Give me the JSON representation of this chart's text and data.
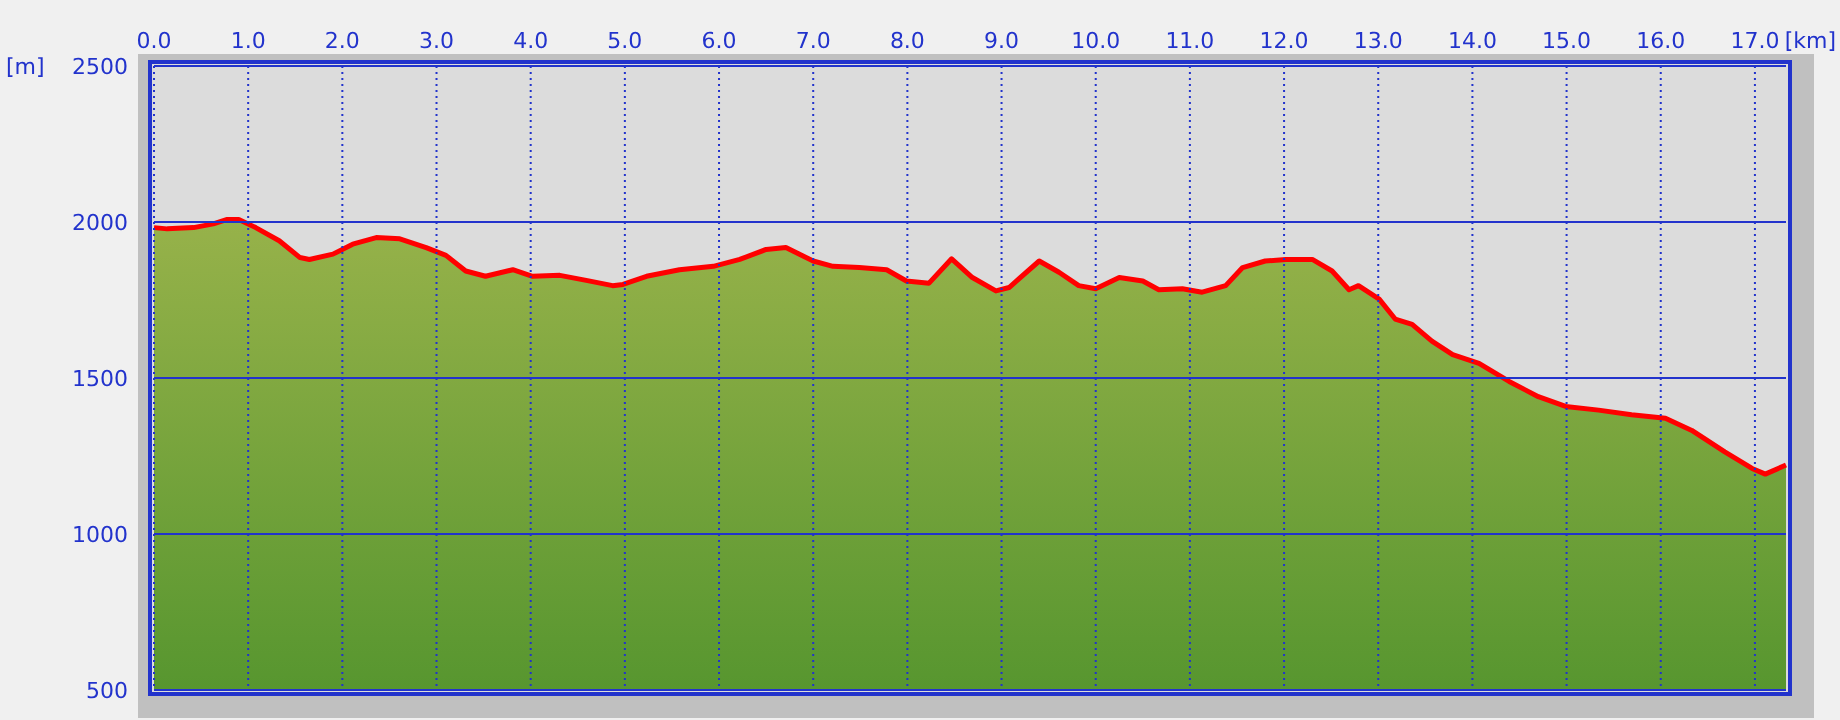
{
  "chart_data": {
    "type": "area",
    "xlabel": "[km]",
    "ylabel": "[m]",
    "x": [
      0,
      0.14,
      0.42,
      0.63,
      0.77,
      0.9,
      1.08,
      1.33,
      1.55,
      1.65,
      1.9,
      2.11,
      2.36,
      2.61,
      2.89,
      3.1,
      3.31,
      3.52,
      3.81,
      4.02,
      4.31,
      4.59,
      4.87,
      4.98,
      5.23,
      5.58,
      5.94,
      6.22,
      6.5,
      6.71,
      7.0,
      7.21,
      7.49,
      7.78,
      7.99,
      8.23,
      8.47,
      8.69,
      8.94,
      9.08,
      9.4,
      9.61,
      9.82,
      10.0,
      10.25,
      10.5,
      10.67,
      10.92,
      11.13,
      11.38,
      11.56,
      11.8,
      12.02,
      12.3,
      12.51,
      12.69,
      12.79,
      13.01,
      13.18,
      13.36,
      13.57,
      13.79,
      14.07,
      14.39,
      14.7,
      14.99,
      15.34,
      15.69,
      16.05,
      16.33,
      16.68,
      16.97,
      17.11,
      17.33
    ],
    "series": [
      {
        "color": "#ff0000",
        "values": [
          1982,
          1978,
          1982,
          1994,
          2008,
          2008,
          1982,
          1940,
          1886,
          1880,
          1897,
          1929,
          1950,
          1946,
          1918,
          1893,
          1843,
          1826,
          1847,
          1826,
          1829,
          1813,
          1796,
          1800,
          1826,
          1847,
          1858,
          1880,
          1912,
          1918,
          1875,
          1858,
          1854,
          1847,
          1811,
          1804,
          1882,
          1822,
          1779,
          1790,
          1875,
          1839,
          1796,
          1786,
          1822,
          1811,
          1783,
          1786,
          1775,
          1796,
          1854,
          1875,
          1880,
          1880,
          1843,
          1783,
          1796,
          1753,
          1689,
          1672,
          1618,
          1575,
          1547,
          1489,
          1440,
          1409,
          1397,
          1382,
          1371,
          1332,
          1263,
          1210,
          1192,
          1221
        ]
      }
    ],
    "xlim": [
      0,
      17.33
    ],
    "xticks": [
      {
        "value": 0,
        "label": "0.0"
      },
      {
        "value": 1,
        "label": "1.0"
      },
      {
        "value": 2,
        "label": "2.0"
      },
      {
        "value": 3,
        "label": "3.0"
      },
      {
        "value": 4,
        "label": "4.0"
      },
      {
        "value": 5,
        "label": "5.0"
      },
      {
        "value": 6,
        "label": "6.0"
      },
      {
        "value": 7,
        "label": "7.0"
      },
      {
        "value": 8,
        "label": "8.0"
      },
      {
        "value": 9,
        "label": "9.0"
      },
      {
        "value": 10,
        "label": "10.0"
      },
      {
        "value": 11,
        "label": "11.0"
      },
      {
        "value": 12,
        "label": "12.0"
      },
      {
        "value": 13,
        "label": "13.0"
      },
      {
        "value": 14,
        "label": "14.0"
      },
      {
        "value": 15,
        "label": "15.0"
      },
      {
        "value": 16,
        "label": "16.0"
      },
      {
        "value": 17,
        "label": "17.0"
      }
    ],
    "ylim": [
      500,
      2500
    ],
    "yticks": [
      500,
      1000,
      1500,
      2000,
      2500
    ],
    "grid": true,
    "line_style": "solid"
  }
}
